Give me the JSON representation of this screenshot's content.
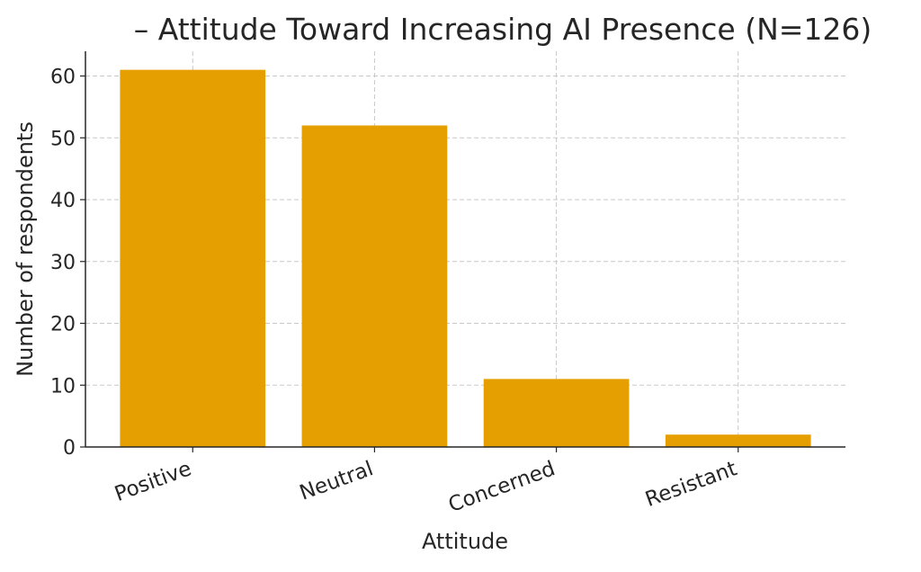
{
  "chart_data": {
    "type": "bar",
    "title": "– Attitude Toward Increasing AI Presence (N=126)",
    "xlabel": "Attitude",
    "ylabel": "Number of respondents",
    "categories": [
      "Positive",
      "Neutral",
      "Concerned",
      "Resistant"
    ],
    "values": [
      61,
      52,
      11,
      2
    ],
    "ylim": [
      0,
      64
    ],
    "yticks": [
      0,
      10,
      20,
      30,
      40,
      50,
      60
    ],
    "grid": true,
    "bar_color": "#E69F00"
  }
}
